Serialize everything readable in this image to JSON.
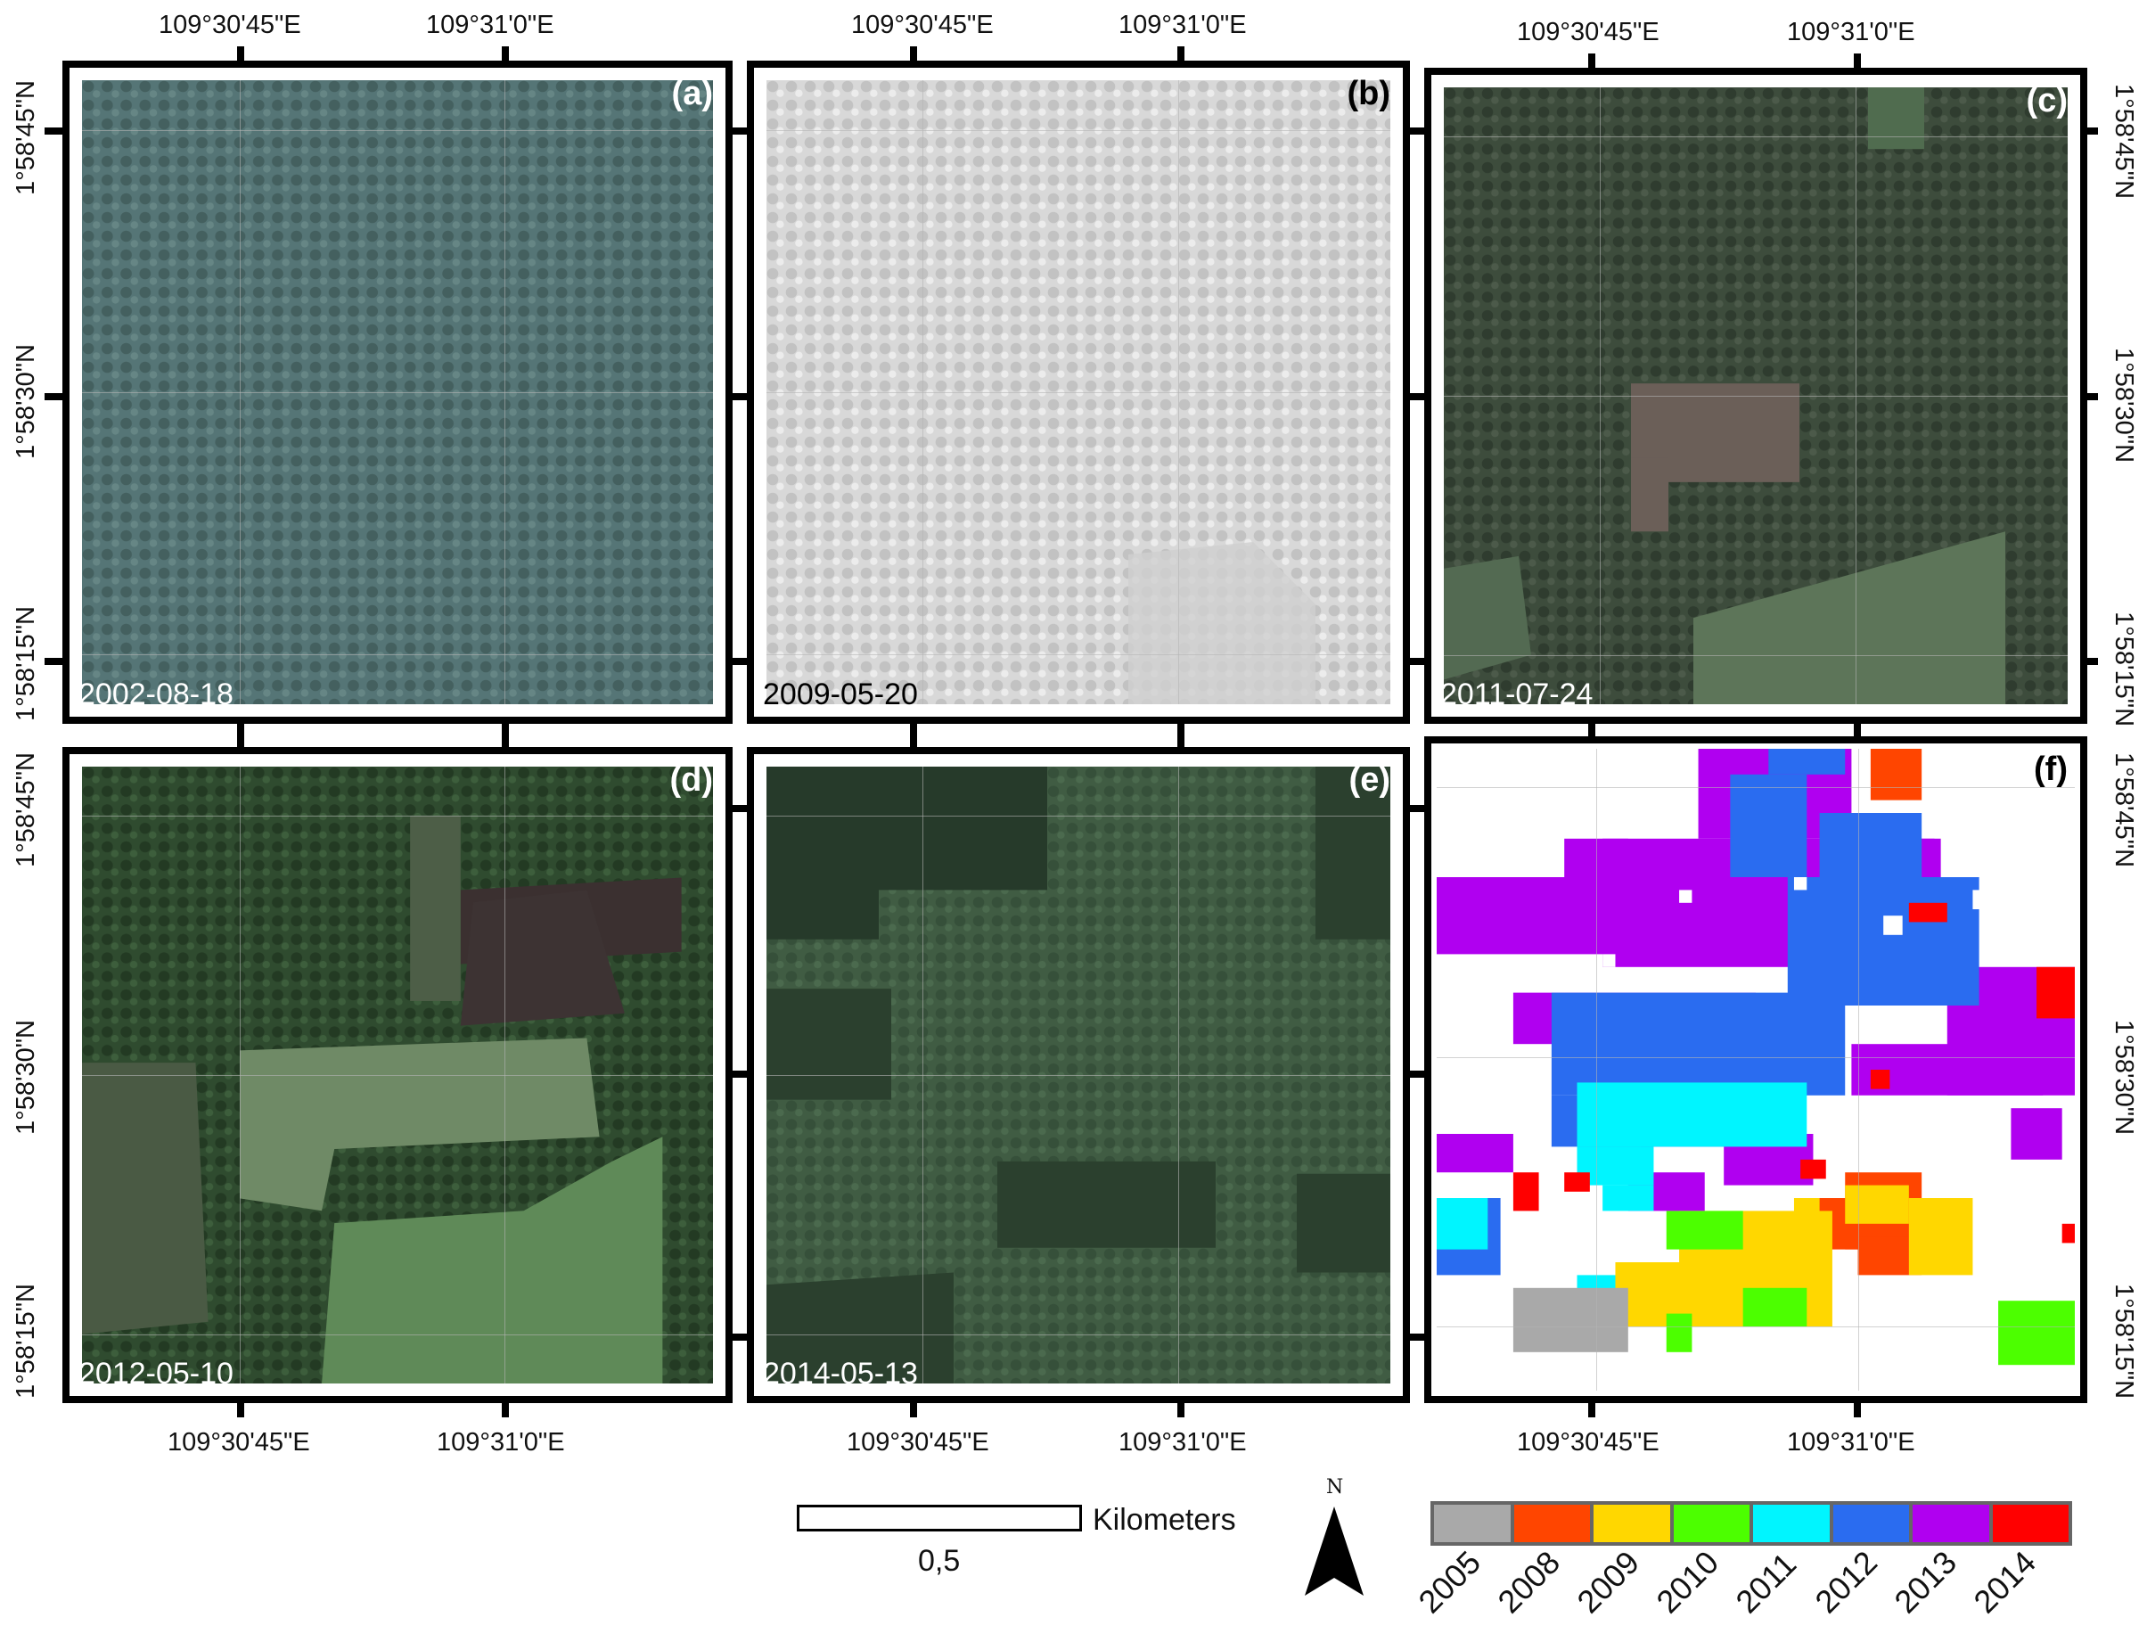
{
  "coords": {
    "lon1": "109°30'45\"E",
    "lon2": "109°31'0\"E",
    "lat1": "1°58'45\"N",
    "lat2": "1°58'30\"N",
    "lat3": "1°58'15\"N"
  },
  "panels": [
    {
      "label": "(a)",
      "date": "2002-08-18",
      "base": "#4f6d6e",
      "label_color": "#ffffff",
      "date_color": "#ffffff"
    },
    {
      "label": "(b)",
      "date": "2009-05-20",
      "base": "#d9d9d9",
      "label_color": "#000000",
      "date_color": "#000000"
    },
    {
      "label": "(c)",
      "date": "2011-07-24",
      "base": "#3a4a3a",
      "label_color": "#ffffff",
      "date_color": "#ffffff"
    },
    {
      "label": "(d)",
      "date": "2012-05-10",
      "base": "#2f4a2f",
      "label_color": "#ffffff",
      "date_color": "#ffffff"
    },
    {
      "label": "(e)",
      "date": "2014-05-13",
      "base": "#3c5740",
      "label_color": "#ffffff",
      "date_color": "#ffffff"
    },
    {
      "label": "(f)",
      "date": "",
      "base": "#ffffff",
      "label_color": "#000000",
      "date_color": "#000000"
    }
  ],
  "scale": {
    "value": "0,5",
    "unit": "Kilometers"
  },
  "north": "N",
  "legend": {
    "title": "",
    "items": [
      {
        "year": "2005",
        "color": "#a9a9a9"
      },
      {
        "year": "2008",
        "color": "#ff4500"
      },
      {
        "year": "2009",
        "color": "#ffd700"
      },
      {
        "year": "2010",
        "color": "#4cff00"
      },
      {
        "year": "2011",
        "color": "#00f5ff"
      },
      {
        "year": "2012",
        "color": "#2a6cf0"
      },
      {
        "year": "2013",
        "color": "#b000f0"
      },
      {
        "year": "2014",
        "color": "#ff0000"
      }
    ]
  }
}
